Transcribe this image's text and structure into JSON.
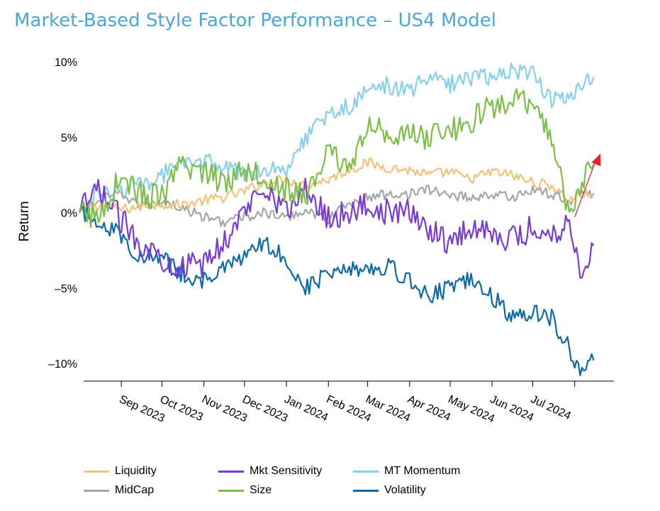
{
  "chart_data": {
    "type": "line",
    "title": "Market-Based Style Factor Performance – US4 Model",
    "xlabel": "",
    "ylabel": "Return",
    "ylim": [
      -0.11,
      0.1
    ],
    "yticks": [
      {
        "value": 0.1,
        "label": "10%"
      },
      {
        "value": 0.05,
        "label": "5%"
      },
      {
        "value": 0.0,
        "label": "0%"
      },
      {
        "value": -0.05,
        "label": "–5%"
      },
      {
        "value": -0.1,
        "label": "–10%"
      }
    ],
    "xlim": [
      "2023-08-01",
      "2024-08-30"
    ],
    "xticks": [
      {
        "date": "2023-09-01",
        "label": "Sep 2023"
      },
      {
        "date": "2023-10-01",
        "label": "Oct 2023"
      },
      {
        "date": "2023-11-01",
        "label": "Nov 2023"
      },
      {
        "date": "2023-12-01",
        "label": "Dec 2023"
      },
      {
        "date": "2024-01-01",
        "label": "Jan 2024"
      },
      {
        "date": "2024-02-01",
        "label": "Feb 2024"
      },
      {
        "date": "2024-03-01",
        "label": "Mar 2024"
      },
      {
        "date": "2024-04-01",
        "label": "Apr 2024"
      },
      {
        "date": "2024-05-01",
        "label": "May 2024"
      },
      {
        "date": "2024-06-01",
        "label": "Jun 2024"
      },
      {
        "date": "2024-07-01",
        "label": "Jul 2024"
      },
      {
        "date": "2024-08-01",
        "label": ""
      }
    ],
    "grid": false,
    "legend_position": "bottom",
    "x": [
      "2023-08-01",
      "2023-08-15",
      "2023-09-01",
      "2023-09-15",
      "2023-10-01",
      "2023-10-15",
      "2023-11-01",
      "2023-11-15",
      "2023-12-01",
      "2023-12-15",
      "2024-01-01",
      "2024-01-15",
      "2024-02-01",
      "2024-02-15",
      "2024-03-01",
      "2024-03-15",
      "2024-04-01",
      "2024-04-15",
      "2024-05-01",
      "2024-05-15",
      "2024-06-01",
      "2024-06-15",
      "2024-07-01",
      "2024-07-15",
      "2024-07-28",
      "2024-08-05",
      "2024-08-15"
    ],
    "series": [
      {
        "name": "Liquidity",
        "color": "#f5c27a",
        "values": [
          0.0,
          0.005,
          0.002,
          0.004,
          0.006,
          0.005,
          0.008,
          0.01,
          0.014,
          0.02,
          0.022,
          0.018,
          0.022,
          0.028,
          0.033,
          0.03,
          0.028,
          0.025,
          0.027,
          0.022,
          0.027,
          0.025,
          0.02,
          0.018,
          0.008,
          0.012,
          0.012
        ]
      },
      {
        "name": "MidCap",
        "color": "#a6a6a6",
        "values": [
          0.0,
          0.008,
          0.012,
          0.005,
          0.008,
          0.003,
          -0.003,
          -0.006,
          -0.003,
          0.0,
          -0.004,
          0.002,
          -0.004,
          0.005,
          0.01,
          0.012,
          0.013,
          0.015,
          0.012,
          0.01,
          0.012,
          0.01,
          0.015,
          0.012,
          0.008,
          0.013,
          0.013
        ]
      },
      {
        "name": "Mkt Sensitivity",
        "color": "#7a3ad8",
        "values": [
          0.0,
          0.015,
          -0.005,
          -0.02,
          -0.03,
          -0.036,
          -0.035,
          -0.02,
          0.0,
          0.02,
          0.0,
          0.015,
          -0.003,
          0.0,
          0.005,
          0.0,
          0.0,
          -0.01,
          -0.02,
          -0.01,
          -0.012,
          -0.018,
          -0.01,
          -0.015,
          -0.005,
          -0.04,
          -0.022
        ]
      },
      {
        "name": "Size",
        "color": "#7bbf47",
        "values": [
          0.0,
          -0.003,
          0.025,
          0.012,
          0.01,
          0.03,
          0.028,
          0.02,
          0.03,
          0.025,
          0.015,
          0.01,
          0.04,
          0.03,
          0.055,
          0.055,
          0.05,
          0.05,
          0.055,
          0.06,
          0.07,
          0.075,
          0.07,
          0.05,
          0.0,
          0.015,
          0.032
        ]
      },
      {
        "name": "MT Momentum",
        "color": "#86d0ee",
        "values": [
          0.0,
          0.012,
          0.015,
          0.018,
          0.025,
          0.03,
          0.035,
          0.03,
          0.025,
          0.03,
          0.03,
          0.05,
          0.065,
          0.07,
          0.08,
          0.085,
          0.08,
          0.09,
          0.085,
          0.09,
          0.09,
          0.095,
          0.092,
          0.075,
          0.075,
          0.085,
          0.09
        ]
      },
      {
        "name": "Volatility",
        "color": "#0b6aa8",
        "values": [
          0.0,
          -0.005,
          -0.015,
          -0.03,
          -0.03,
          -0.04,
          -0.045,
          -0.038,
          -0.03,
          -0.02,
          -0.03,
          -0.05,
          -0.04,
          -0.035,
          -0.038,
          -0.035,
          -0.045,
          -0.055,
          -0.05,
          -0.045,
          -0.055,
          -0.07,
          -0.065,
          -0.07,
          -0.09,
          -0.105,
          -0.098
        ]
      }
    ],
    "annotation": {
      "type": "arrow",
      "color": "#e8202a",
      "from": {
        "x": "2024-08-01",
        "y": -0.003
      },
      "to": {
        "x": "2024-08-20",
        "y": 0.039
      }
    }
  }
}
